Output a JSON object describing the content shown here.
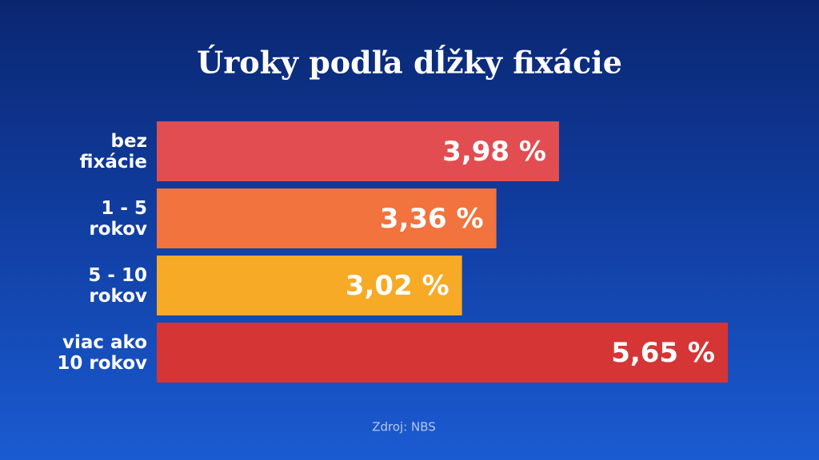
{
  "chart_data": {
    "type": "hbar",
    "title": "Úroky podľa dĺžky fixácie",
    "categories": [
      "bez\nfixácie",
      "1 - 5\nrokov",
      "5 - 10\nrokov",
      "viac ako\n10 rokov"
    ],
    "values": [
      3.98,
      3.36,
      3.02,
      5.65
    ],
    "value_labels": [
      "3,98 %",
      "3,36 %",
      "3,02 %",
      "5,65 %"
    ],
    "colors": [
      "#e24d51",
      "#f2733d",
      "#f6aa25",
      "#d63535"
    ],
    "source": "Zdroj: NBS"
  }
}
